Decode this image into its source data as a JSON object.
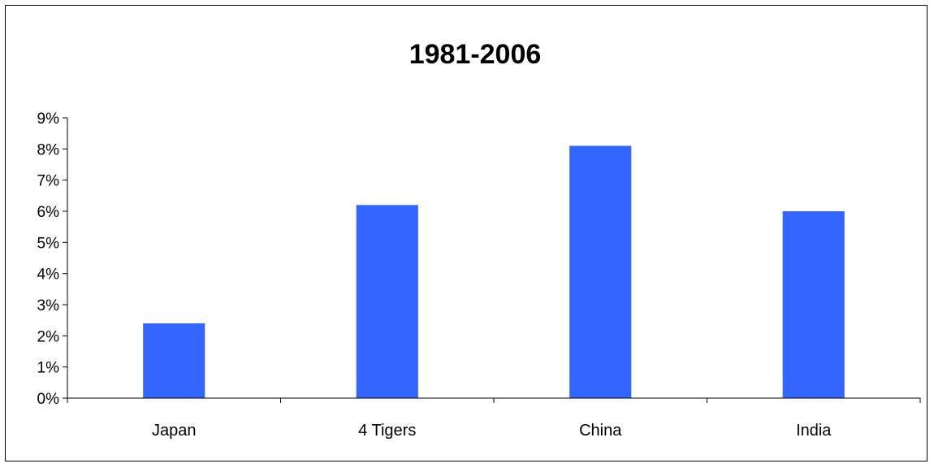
{
  "chart_data": {
    "type": "bar",
    "title": "1981-2006",
    "categories": [
      "Japan",
      "4 Tigers",
      "China",
      "India"
    ],
    "values": [
      2.4,
      6.2,
      8.1,
      6.0
    ],
    "ylim": [
      0,
      9
    ],
    "yticks": [
      0,
      1,
      2,
      3,
      4,
      5,
      6,
      7,
      8,
      9
    ],
    "ytick_labels": [
      "0%",
      "1%",
      "2%",
      "3%",
      "4%",
      "5%",
      "6%",
      "7%",
      "8%",
      "9%"
    ],
    "xlabel": "",
    "ylabel": "",
    "grid": false,
    "legend": "none",
    "bar_color": "#3366FF",
    "axis_color": "#000000"
  }
}
